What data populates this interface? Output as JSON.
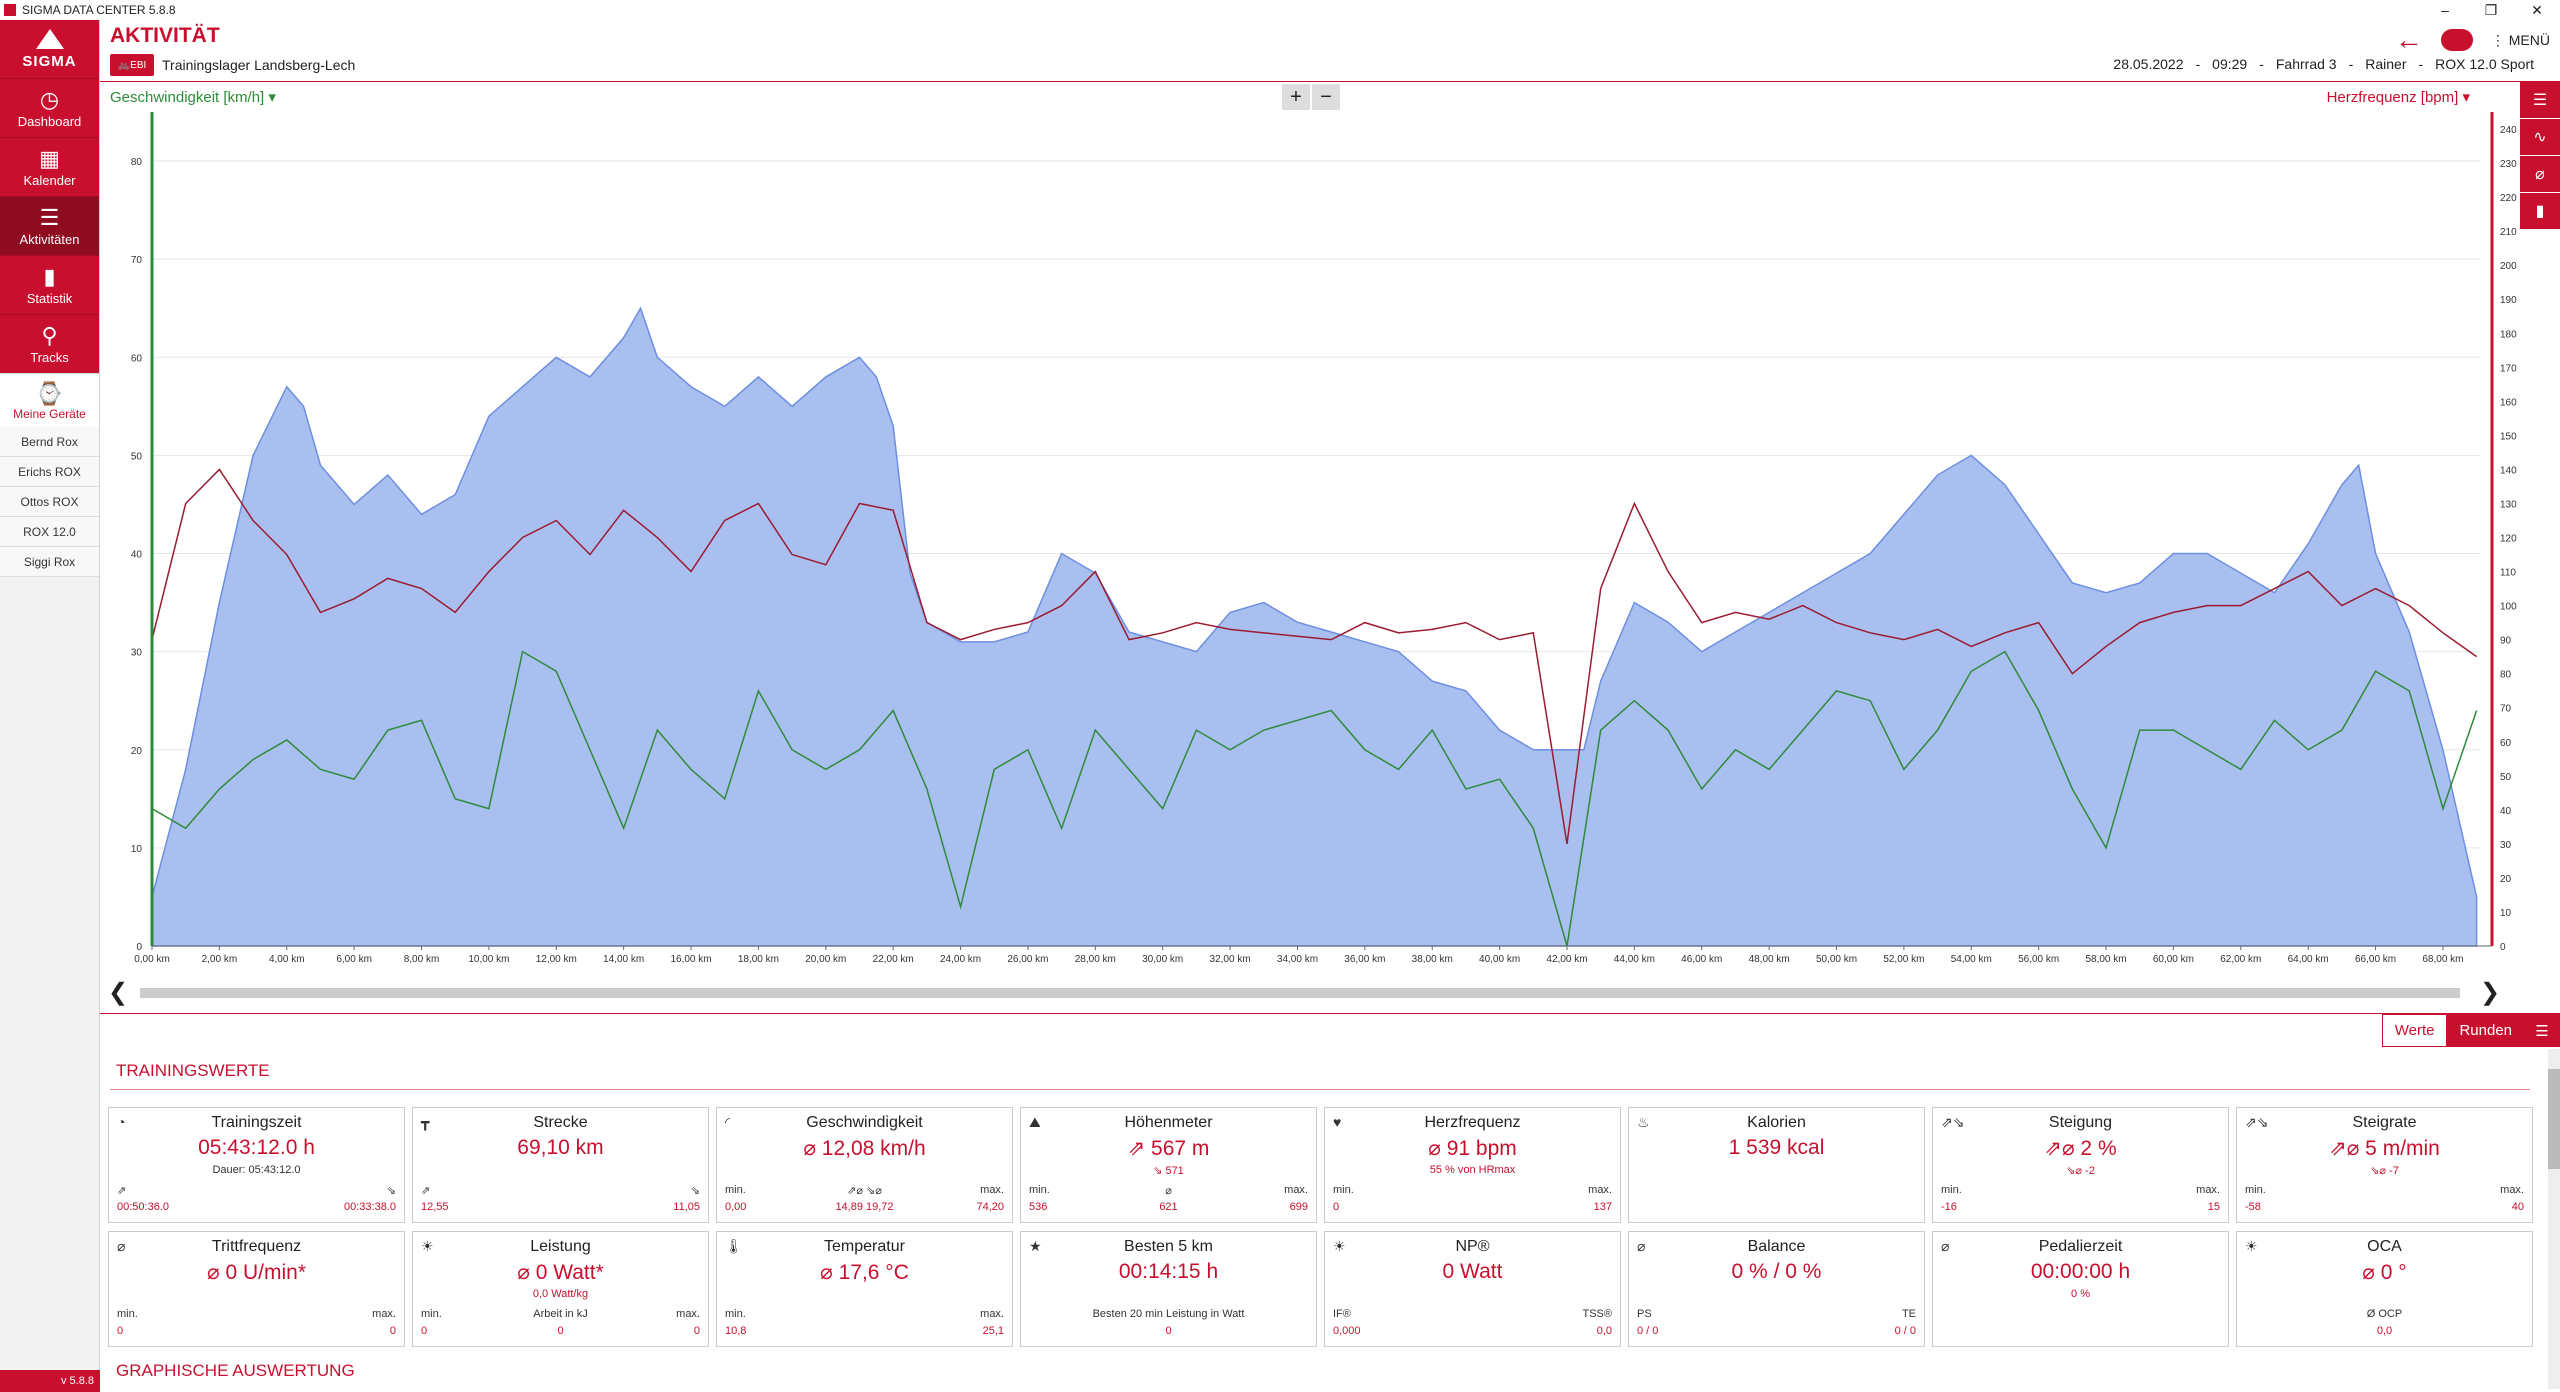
{
  "window": {
    "title": "SIGMA DATA CENTER 5.8.8",
    "ctrl_min": "–",
    "ctrl_max": "❐",
    "ctrl_close": "✕"
  },
  "sidebar": {
    "logo": "SIGMA",
    "items": [
      {
        "label": "Dashboard",
        "icon": "gauge-icon",
        "glyph": "◷"
      },
      {
        "label": "Kalender",
        "icon": "calendar-icon",
        "glyph": "▦"
      },
      {
        "label": "Aktivitäten",
        "icon": "list-icon",
        "glyph": "☰"
      },
      {
        "label": "Statistik",
        "icon": "bar-chart-icon",
        "glyph": "▮"
      },
      {
        "label": "Tracks",
        "icon": "map-pin-icon",
        "glyph": "⚲"
      }
    ],
    "devices_label": "Meine Geräte",
    "devices": [
      "Bernd Rox",
      "Erichs ROX",
      "Ottos ROX",
      "ROX 12.0",
      "Siggi Rox"
    ],
    "version": "v 5.8.8"
  },
  "header": {
    "title": "AKTIVITÄT",
    "badge": "EBI",
    "activity_name": "Trainingslager Landsberg-Lech",
    "date": "28.05.2022",
    "time": "09:29",
    "bike": "Fahrrad 3",
    "user": "Rainer",
    "device": "ROX 12.0 Sport",
    "menu_label": "MENÜ",
    "sep": "-"
  },
  "chart": {
    "left_label": "Geschwindigkeit [km/h]",
    "right_label": "Herzfrequenz [bpm]",
    "zoom_in": "+",
    "zoom_out": "−"
  },
  "chart_data": {
    "type": "area",
    "x_unit": "km",
    "xlim": [
      0,
      69.1
    ],
    "x_ticks": [
      "0,00 km",
      "2,00 km",
      "4,00 km",
      "6,00 km",
      "8,00 km",
      "10,00 km",
      "12,00 km",
      "14,00 km",
      "16,00 km",
      "18,00 km",
      "20,00 km",
      "22,00 km",
      "24,00 km",
      "26,00 km",
      "28,00 km",
      "30,00 km",
      "32,00 km",
      "34,00 km",
      "36,00 km",
      "38,00 km",
      "40,00 km",
      "42,00 km",
      "44,00 km",
      "46,00 km",
      "48,00 km",
      "50,00 km",
      "52,00 km",
      "54,00 km",
      "56,00 km",
      "58,00 km",
      "60,00 km",
      "62,00 km",
      "64,00 km",
      "66,00 km",
      "68,00 km"
    ],
    "y_left_ticks": [
      "0",
      "10",
      "20",
      "30",
      "40",
      "50",
      "60",
      "70",
      "80"
    ],
    "y_left_lim": [
      0,
      85
    ],
    "y_right_ticks": [
      "0",
      "10",
      "20",
      "30",
      "40",
      "50",
      "60",
      "70",
      "80",
      "90",
      "100",
      "110",
      "120",
      "130",
      "140",
      "150",
      "160",
      "170",
      "180",
      "190",
      "200",
      "210",
      "220",
      "230",
      "240"
    ],
    "y_right_lim": [
      0,
      245
    ],
    "series": [
      {
        "name": "Höhenmeter",
        "color": "#a9bff0",
        "x": [
          0,
          1,
          2,
          3,
          4,
          4.5,
          5,
          6,
          7,
          8,
          9,
          10,
          11,
          12,
          13,
          14,
          14.5,
          15,
          16,
          17,
          18,
          19,
          20,
          21,
          21.5,
          22,
          22.5,
          23,
          24,
          25,
          26,
          27,
          28,
          29,
          30,
          31,
          32,
          33,
          34,
          35,
          36,
          37,
          38,
          39,
          40,
          41,
          42,
          42.5,
          43,
          44,
          45,
          46,
          47,
          48,
          49,
          50,
          51,
          52,
          53,
          54,
          55,
          56,
          57,
          58,
          59,
          60,
          61,
          62,
          63,
          64,
          65,
          65.5,
          66,
          67,
          68,
          69
        ],
        "y": [
          5,
          18,
          35,
          50,
          57,
          55,
          49,
          45,
          48,
          44,
          46,
          54,
          57,
          60,
          58,
          62,
          65,
          60,
          57,
          55,
          58,
          55,
          58,
          60,
          58,
          53,
          38,
          33,
          31,
          31,
          32,
          40,
          38,
          32,
          31,
          30,
          34,
          35,
          33,
          32,
          31,
          30,
          27,
          26,
          22,
          20,
          20,
          20,
          27,
          35,
          33,
          30,
          32,
          34,
          36,
          38,
          40,
          44,
          48,
          50,
          47,
          42,
          37,
          36,
          37,
          40,
          40,
          38,
          36,
          41,
          47,
          49,
          40,
          32,
          20,
          5
        ]
      },
      {
        "name": "Geschwindigkeit",
        "color": "#2e8b3a",
        "x": [
          0,
          1,
          2,
          3,
          4,
          5,
          6,
          7,
          8,
          9,
          10,
          11,
          12,
          13,
          14,
          15,
          16,
          17,
          18,
          19,
          20,
          21,
          22,
          23,
          24,
          25,
          26,
          27,
          28,
          29,
          30,
          31,
          32,
          33,
          34,
          35,
          36,
          37,
          38,
          39,
          40,
          41,
          42,
          43,
          44,
          45,
          46,
          47,
          48,
          49,
          50,
          51,
          52,
          53,
          54,
          55,
          56,
          57,
          58,
          59,
          60,
          61,
          62,
          63,
          64,
          65,
          66,
          67,
          68,
          69
        ],
        "y": [
          14,
          12,
          16,
          19,
          21,
          18,
          17,
          22,
          23,
          15,
          14,
          30,
          28,
          20,
          12,
          22,
          18,
          15,
          26,
          20,
          18,
          20,
          24,
          16,
          4,
          18,
          20,
          12,
          22,
          18,
          14,
          22,
          20,
          22,
          23,
          24,
          20,
          18,
          22,
          16,
          17,
          12,
          0,
          22,
          25,
          22,
          16,
          20,
          18,
          22,
          26,
          25,
          18,
          22,
          28,
          30,
          24,
          16,
          10,
          22,
          22,
          20,
          18,
          23,
          20,
          22,
          28,
          26,
          14,
          24
        ]
      },
      {
        "name": "Herzfrequenz",
        "color": "#9b1b30",
        "x": [
          0,
          1,
          2,
          3,
          4,
          5,
          6,
          7,
          8,
          9,
          10,
          11,
          12,
          13,
          14,
          15,
          16,
          17,
          18,
          19,
          20,
          21,
          22,
          23,
          24,
          25,
          26,
          27,
          28,
          29,
          30,
          31,
          32,
          33,
          34,
          35,
          36,
          37,
          38,
          39,
          40,
          41,
          42,
          43,
          44,
          45,
          46,
          47,
          48,
          49,
          50,
          51,
          52,
          53,
          54,
          55,
          56,
          57,
          58,
          59,
          60,
          61,
          62,
          63,
          64,
          65,
          66,
          67,
          68,
          69
        ],
        "y": [
          90,
          130,
          140,
          125,
          115,
          98,
          102,
          108,
          105,
          98,
          110,
          120,
          125,
          115,
          128,
          120,
          110,
          125,
          130,
          115,
          112,
          130,
          128,
          95,
          90,
          93,
          95,
          100,
          110,
          90,
          92,
          95,
          93,
          92,
          91,
          90,
          95,
          92,
          93,
          95,
          90,
          92,
          30,
          105,
          130,
          110,
          95,
          98,
          96,
          100,
          95,
          92,
          90,
          93,
          88,
          92,
          95,
          80,
          88,
          95,
          98,
          100,
          100,
          105,
          110,
          100,
          105,
          100,
          92,
          85
        ]
      }
    ]
  },
  "tabs": {
    "werte": "Werte",
    "runden": "Runden",
    "list_glyph": "☰"
  },
  "training": {
    "title": "TRAININGSWERTE",
    "graphic_title": "GRAPHISCHE AUSWERTUNG",
    "cards": [
      {
        "title": "Trainingszeit",
        "icon": "stopwatch-icon",
        "glyph": "◔",
        "value": "05:43:12.0 h",
        "sub": "Dauer:  05:43:12.0",
        "sub_dark": true,
        "lbl_l": "⇗",
        "lbl_c": "",
        "lbl_r": "⇘",
        "val_l": "00:50:36.0",
        "val_c": "",
        "val_r": "00:33:38.0"
      },
      {
        "title": "Strecke",
        "icon": "road-sign-icon",
        "glyph": "┳",
        "value": "69,10 km",
        "sub": "",
        "sub_dark": false,
        "lbl_l": "⇗",
        "lbl_c": "",
        "lbl_r": "⇘",
        "val_l": "12,55",
        "val_c": "",
        "val_r": "11,05"
      },
      {
        "title": "Geschwindigkeit",
        "icon": "speedometer-icon",
        "glyph": "◜",
        "value": "⌀ 12,08 km/h",
        "sub": "",
        "sub_dark": false,
        "lbl_l": "min.",
        "lbl_c": "⇗⌀   ⇘⌀",
        "lbl_r": "max.",
        "val_l": "0,00",
        "val_c": "14,89   19,72",
        "val_r": "74,20"
      },
      {
        "title": "Höhenmeter",
        "icon": "mountain-icon",
        "glyph": "⛰",
        "value": "⇗ 567 m",
        "sub": "⇘ 571",
        "sub_dark": false,
        "lbl_l": "min.",
        "lbl_c": "⌀",
        "lbl_r": "max.",
        "val_l": "536",
        "val_c": "621",
        "val_r": "699"
      },
      {
        "title": "Herzfrequenz",
        "icon": "heart-icon",
        "glyph": "♥",
        "value": "⌀ 91 bpm",
        "sub": "55 % von HRmax",
        "sub_dark": false,
        "lbl_l": "min.",
        "lbl_c": "",
        "lbl_r": "max.",
        "val_l": "0",
        "val_c": "",
        "val_r": "137"
      },
      {
        "title": "Kalorien",
        "icon": "flame-icon",
        "glyph": "♨",
        "value": "1 539 kcal",
        "sub": "",
        "sub_dark": false,
        "lbl_l": "",
        "lbl_c": "",
        "lbl_r": "",
        "val_l": "",
        "val_c": "",
        "val_r": ""
      },
      {
        "title": "Steigung",
        "icon": "incline-icon",
        "glyph": "⇗⇘",
        "value": "⇗⌀ 2 %",
        "sub": "⇘⌀  -2",
        "sub_dark": false,
        "lbl_l": "min.",
        "lbl_c": "",
        "lbl_r": "max.",
        "val_l": "-16",
        "val_c": "",
        "val_r": "15"
      },
      {
        "title": "Steigrate",
        "icon": "climb-rate-icon",
        "glyph": "⇗⇘",
        "value": "⇗⌀ 5 m/min",
        "sub": "⇘⌀  -7",
        "sub_dark": false,
        "lbl_l": "min.",
        "lbl_c": "",
        "lbl_r": "max.",
        "val_l": "-58",
        "val_c": "",
        "val_r": "40"
      },
      {
        "title": "Trittfrequenz",
        "icon": "cadence-icon",
        "glyph": "⌀",
        "value": "⌀ 0 U/min*",
        "sub": "",
        "sub_dark": false,
        "lbl_l": "min.",
        "lbl_c": "",
        "lbl_r": "max.",
        "val_l": "0",
        "val_c": "",
        "val_r": "0"
      },
      {
        "title": "Leistung",
        "icon": "power-icon",
        "glyph": "☀",
        "value": "⌀ 0 Watt*",
        "sub": "0,0 Watt/kg",
        "sub_dark": false,
        "lbl_l": "min.",
        "lbl_c": "Arbeit in kJ",
        "lbl_r": "max.",
        "val_l": "0",
        "val_c": "0",
        "val_r": "0"
      },
      {
        "title": "Temperatur",
        "icon": "thermometer-icon",
        "glyph": "🌡",
        "value": "⌀ 17,6 °C",
        "sub": "",
        "sub_dark": false,
        "lbl_l": "min.",
        "lbl_c": "",
        "lbl_r": "max.",
        "val_l": "10,8",
        "val_c": "",
        "val_r": "25,1"
      },
      {
        "title": "Besten 5 km",
        "icon": "star-icon",
        "glyph": "★",
        "value": "00:14:15 h",
        "sub": "",
        "sub_dark": false,
        "lbl_l": "",
        "lbl_c": "Besten 20 min Leistung in Watt",
        "lbl_r": "",
        "val_l": "",
        "val_c": "0",
        "val_r": ""
      },
      {
        "title": "NP®",
        "icon": "power-icon",
        "glyph": "☀",
        "value": "0 Watt",
        "sub": "",
        "sub_dark": false,
        "lbl_l": "IF®",
        "lbl_c": "",
        "lbl_r": "TSS®",
        "val_l": "0,000",
        "val_c": "",
        "val_r": "0,0"
      },
      {
        "title": "Balance",
        "icon": "balance-icon",
        "glyph": "⌀",
        "value": "0 %  /  0 %",
        "sub": "",
        "sub_dark": false,
        "lbl_l": "PS",
        "lbl_c": "",
        "lbl_r": "TE",
        "val_l": "0  /  0",
        "val_c": "",
        "val_r": "0  /  0"
      },
      {
        "title": "Pedalierzeit",
        "icon": "pedal-icon",
        "glyph": "⌀",
        "value": "00:00:00 h",
        "sub": "0 %",
        "sub_dark": false,
        "lbl_l": "",
        "lbl_c": "",
        "lbl_r": "",
        "val_l": "",
        "val_c": "",
        "val_r": ""
      },
      {
        "title": "OCA",
        "icon": "power-icon",
        "glyph": "☀",
        "value": "⌀ 0 °",
        "sub": "",
        "sub_dark": false,
        "lbl_l": "",
        "lbl_c": "Ø OCP",
        "lbl_r": "",
        "val_l": "",
        "val_c": "0,0",
        "val_r": ""
      }
    ]
  }
}
